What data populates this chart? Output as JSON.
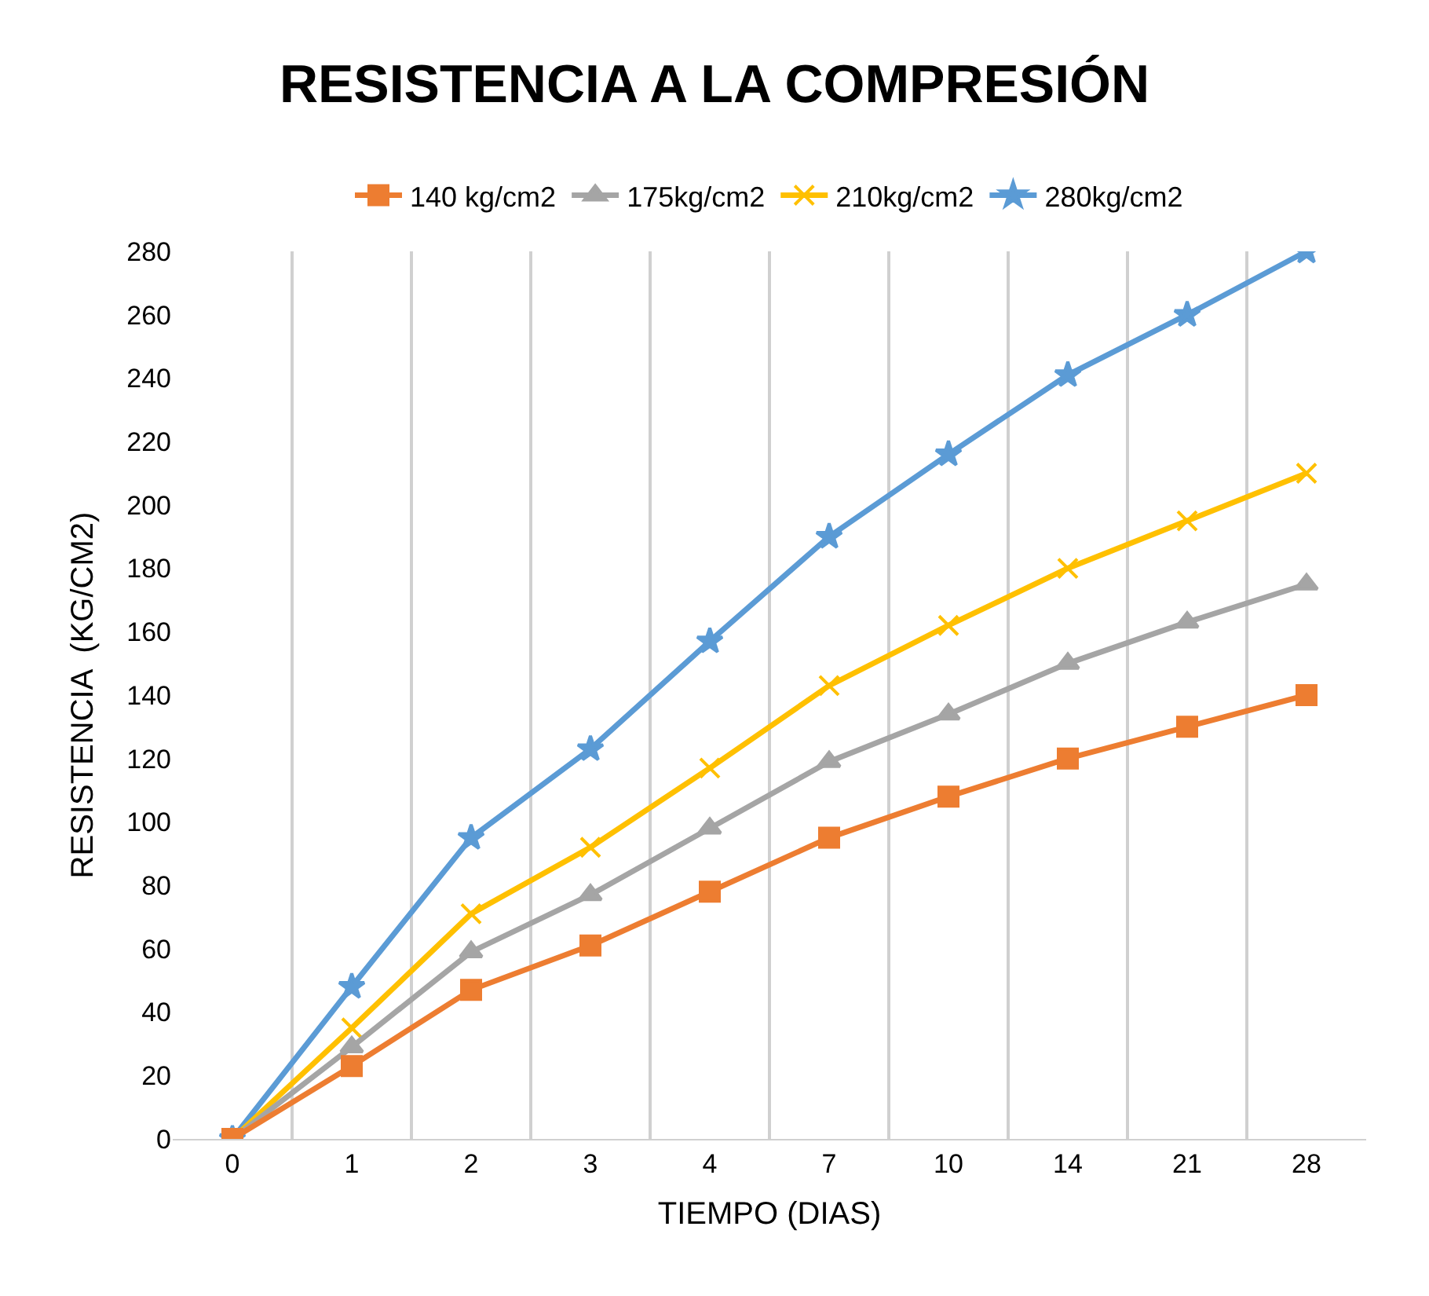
{
  "chart_data": {
    "type": "line",
    "title": "RESISTENCIA A LA COMPRESIÓN",
    "xlabel": "TIEMPO (DIAS)",
    "ylabel": "RESISTENCIA  (KG/CM2)",
    "categories": [
      "0",
      "1",
      "2",
      "3",
      "4",
      "7",
      "10",
      "14",
      "21",
      "28"
    ],
    "series": [
      {
        "name": "140 kg/cm2",
        "color": "#ed7d31",
        "marker": "square",
        "values": [
          0,
          23,
          47,
          61,
          78,
          95,
          108,
          120,
          130,
          140
        ]
      },
      {
        "name": "175kg/cm2",
        "color": "#a5a5a5",
        "marker": "triangle",
        "values": [
          0,
          29,
          59,
          77,
          98,
          119,
          134,
          150,
          163,
          175
        ]
      },
      {
        "name": "210kg/cm2",
        "color": "#ffc000",
        "marker": "cross",
        "values": [
          0,
          35,
          71,
          92,
          117,
          143,
          162,
          180,
          195,
          210
        ]
      },
      {
        "name": "280kg/cm2",
        "color": "#5b9bd5",
        "marker": "star",
        "values": [
          0,
          48,
          95,
          123,
          157,
          190,
          216,
          241,
          260,
          280
        ]
      }
    ],
    "ylim": [
      0,
      280
    ],
    "yticks": [
      0,
      20,
      40,
      60,
      80,
      100,
      120,
      140,
      160,
      180,
      200,
      220,
      240,
      260,
      280
    ],
    "grid": "x",
    "legend": "top",
    "line_style": "solid"
  }
}
